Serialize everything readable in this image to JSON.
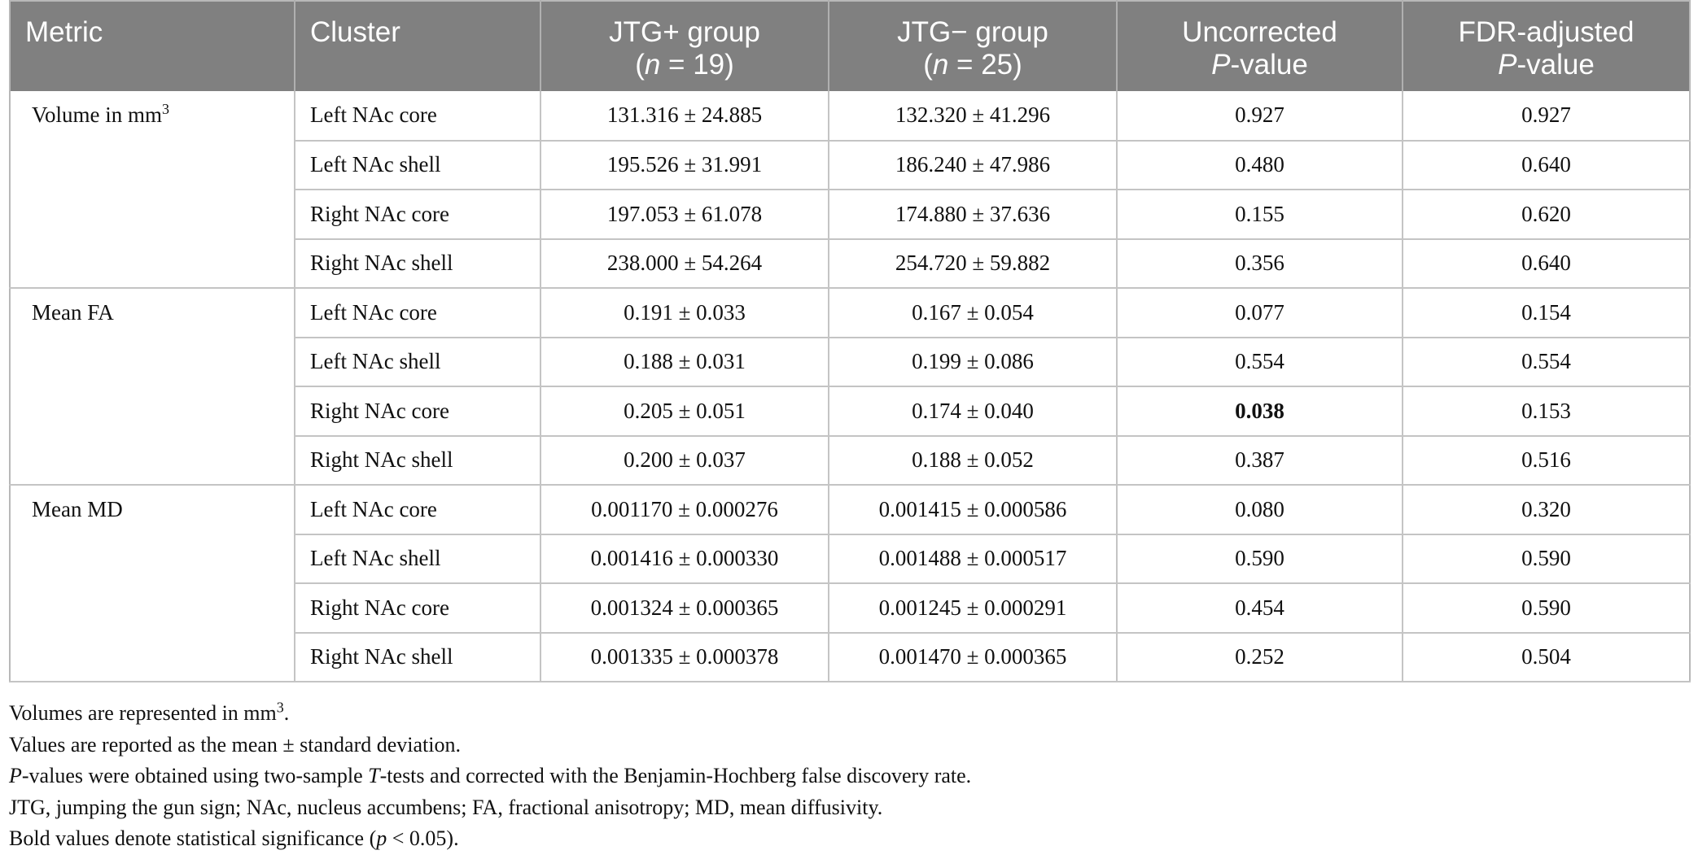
{
  "table": {
    "headers": [
      {
        "line1": "Metric",
        "line2": ""
      },
      {
        "line1": "Cluster",
        "line2": ""
      },
      {
        "line1": "JTG+ group",
        "line2_pre": "(",
        "line2_italic": "n",
        "line2_post": " = 19)"
      },
      {
        "line1": "JTG− group",
        "line2_pre": "(",
        "line2_italic": "n",
        "line2_post": " = 25)"
      },
      {
        "line1": "Uncorrected",
        "line2_italic": "P",
        "line2_post": "-value"
      },
      {
        "line1": "FDR-adjusted",
        "line2_italic": "P",
        "line2_post": "-value"
      }
    ],
    "groups": [
      {
        "metric": "Volume in mm",
        "metric_sup": "3",
        "rows": [
          {
            "cluster": "Left NAc core",
            "jtg_pos": "131.316 ± 24.885",
            "jtg_neg": "132.320 ± 41.296",
            "uncorrected": "0.927",
            "fdr": "0.927",
            "bold": false
          },
          {
            "cluster": "Left NAc shell",
            "jtg_pos": "195.526 ± 31.991",
            "jtg_neg": "186.240 ± 47.986",
            "uncorrected": "0.480",
            "fdr": "0.640",
            "bold": false
          },
          {
            "cluster": "Right NAc core",
            "jtg_pos": "197.053 ± 61.078",
            "jtg_neg": "174.880 ± 37.636",
            "uncorrected": "0.155",
            "fdr": "0.620",
            "bold": false
          },
          {
            "cluster": "Right NAc shell",
            "jtg_pos": "238.000 ± 54.264",
            "jtg_neg": "254.720 ± 59.882",
            "uncorrected": "0.356",
            "fdr": "0.640",
            "bold": false
          }
        ]
      },
      {
        "metric": "Mean FA",
        "metric_sup": "",
        "rows": [
          {
            "cluster": "Left NAc core",
            "jtg_pos": "0.191 ± 0.033",
            "jtg_neg": "0.167 ± 0.054",
            "uncorrected": "0.077",
            "fdr": "0.154",
            "bold": false
          },
          {
            "cluster": "Left NAc shell",
            "jtg_pos": "0.188 ± 0.031",
            "jtg_neg": "0.199 ± 0.086",
            "uncorrected": "0.554",
            "fdr": "0.554",
            "bold": false
          },
          {
            "cluster": "Right NAc core",
            "jtg_pos": "0.205 ± 0.051",
            "jtg_neg": "0.174 ± 0.040",
            "uncorrected": "0.038",
            "fdr": "0.153",
            "bold": true
          },
          {
            "cluster": "Right NAc shell",
            "jtg_pos": "0.200 ± 0.037",
            "jtg_neg": "0.188 ± 0.052",
            "uncorrected": "0.387",
            "fdr": "0.516",
            "bold": false
          }
        ]
      },
      {
        "metric": "Mean MD",
        "metric_sup": "",
        "rows": [
          {
            "cluster": "Left NAc core",
            "jtg_pos": "0.001170 ± 0.000276",
            "jtg_neg": "0.001415 ± 0.000586",
            "uncorrected": "0.080",
            "fdr": "0.320",
            "bold": false
          },
          {
            "cluster": "Left NAc shell",
            "jtg_pos": "0.001416 ± 0.000330",
            "jtg_neg": "0.001488 ± 0.000517",
            "uncorrected": "0.590",
            "fdr": "0.590",
            "bold": false
          },
          {
            "cluster": "Right NAc core",
            "jtg_pos": "0.001324 ± 0.000365",
            "jtg_neg": "0.001245 ± 0.000291",
            "uncorrected": "0.454",
            "fdr": "0.590",
            "bold": false
          },
          {
            "cluster": "Right NAc shell",
            "jtg_pos": "0.001335 ± 0.000378",
            "jtg_neg": "0.001470 ± 0.000365",
            "uncorrected": "0.252",
            "fdr": "0.504",
            "bold": false
          }
        ]
      }
    ]
  },
  "notes": {
    "n1_text": "Volumes are represented in mm",
    "n1_sup": "3",
    "n1_end": ".",
    "n2": "Values are reported as the mean ± standard deviation.",
    "n3_italic": "P",
    "n3_mid": "-values were obtained using two-sample ",
    "n3_italic2": "T",
    "n3_end": "-tests and corrected with the Benjamin-Hochberg false discovery rate.",
    "n4": "JTG, jumping the gun sign; NAc, nucleus accumbens; FA, fractional anisotropy; MD, mean diffusivity.",
    "n5_pre": "Bold values denote statistical significance (",
    "n5_italic": "p",
    "n5_post": " < 0.05)."
  }
}
